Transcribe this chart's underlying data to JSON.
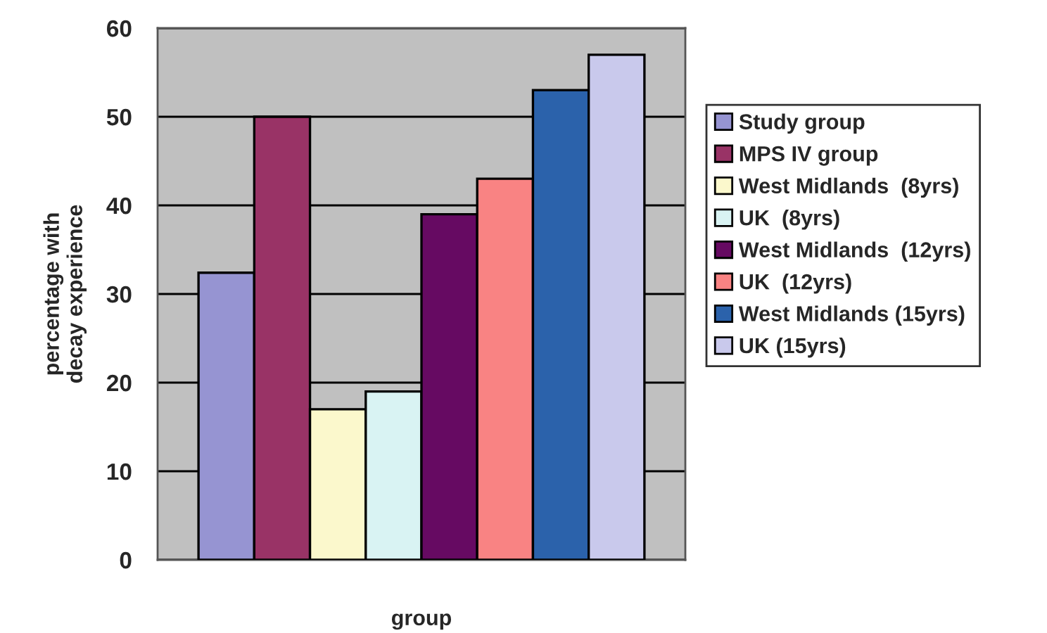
{
  "chart_data": {
    "type": "bar",
    "ylabel": "percentage with\ndecay experience",
    "xlabel": "group",
    "categories": [
      null
    ],
    "series": [
      {
        "name": "Study group",
        "color": "#9694d2",
        "values": [
          32.4
        ]
      },
      {
        "name": "MPS IV group",
        "color": "#993366",
        "values": [
          50
        ]
      },
      {
        "name": "West Midlands  (8yrs)",
        "color": "#fbf8cc",
        "values": [
          17
        ]
      },
      {
        "name": "UK  (8yrs)",
        "color": "#d9f3f3",
        "values": [
          19
        ]
      },
      {
        "name": "West Midlands  (12yrs)",
        "color": "#660a62",
        "values": [
          39
        ]
      },
      {
        "name": "UK  (12yrs)",
        "color": "#f98383",
        "values": [
          43
        ]
      },
      {
        "name": "West Midlands (15yrs)",
        "color": "#2b62ab",
        "values": [
          53
        ]
      },
      {
        "name": "UK (15yrs)",
        "color": "#c9c9ec",
        "values": [
          57
        ]
      }
    ],
    "ylim": [
      0,
      60
    ],
    "yticks": [
      0,
      10,
      20,
      30,
      40,
      50,
      60
    ],
    "grid": "y",
    "legend": "right"
  }
}
